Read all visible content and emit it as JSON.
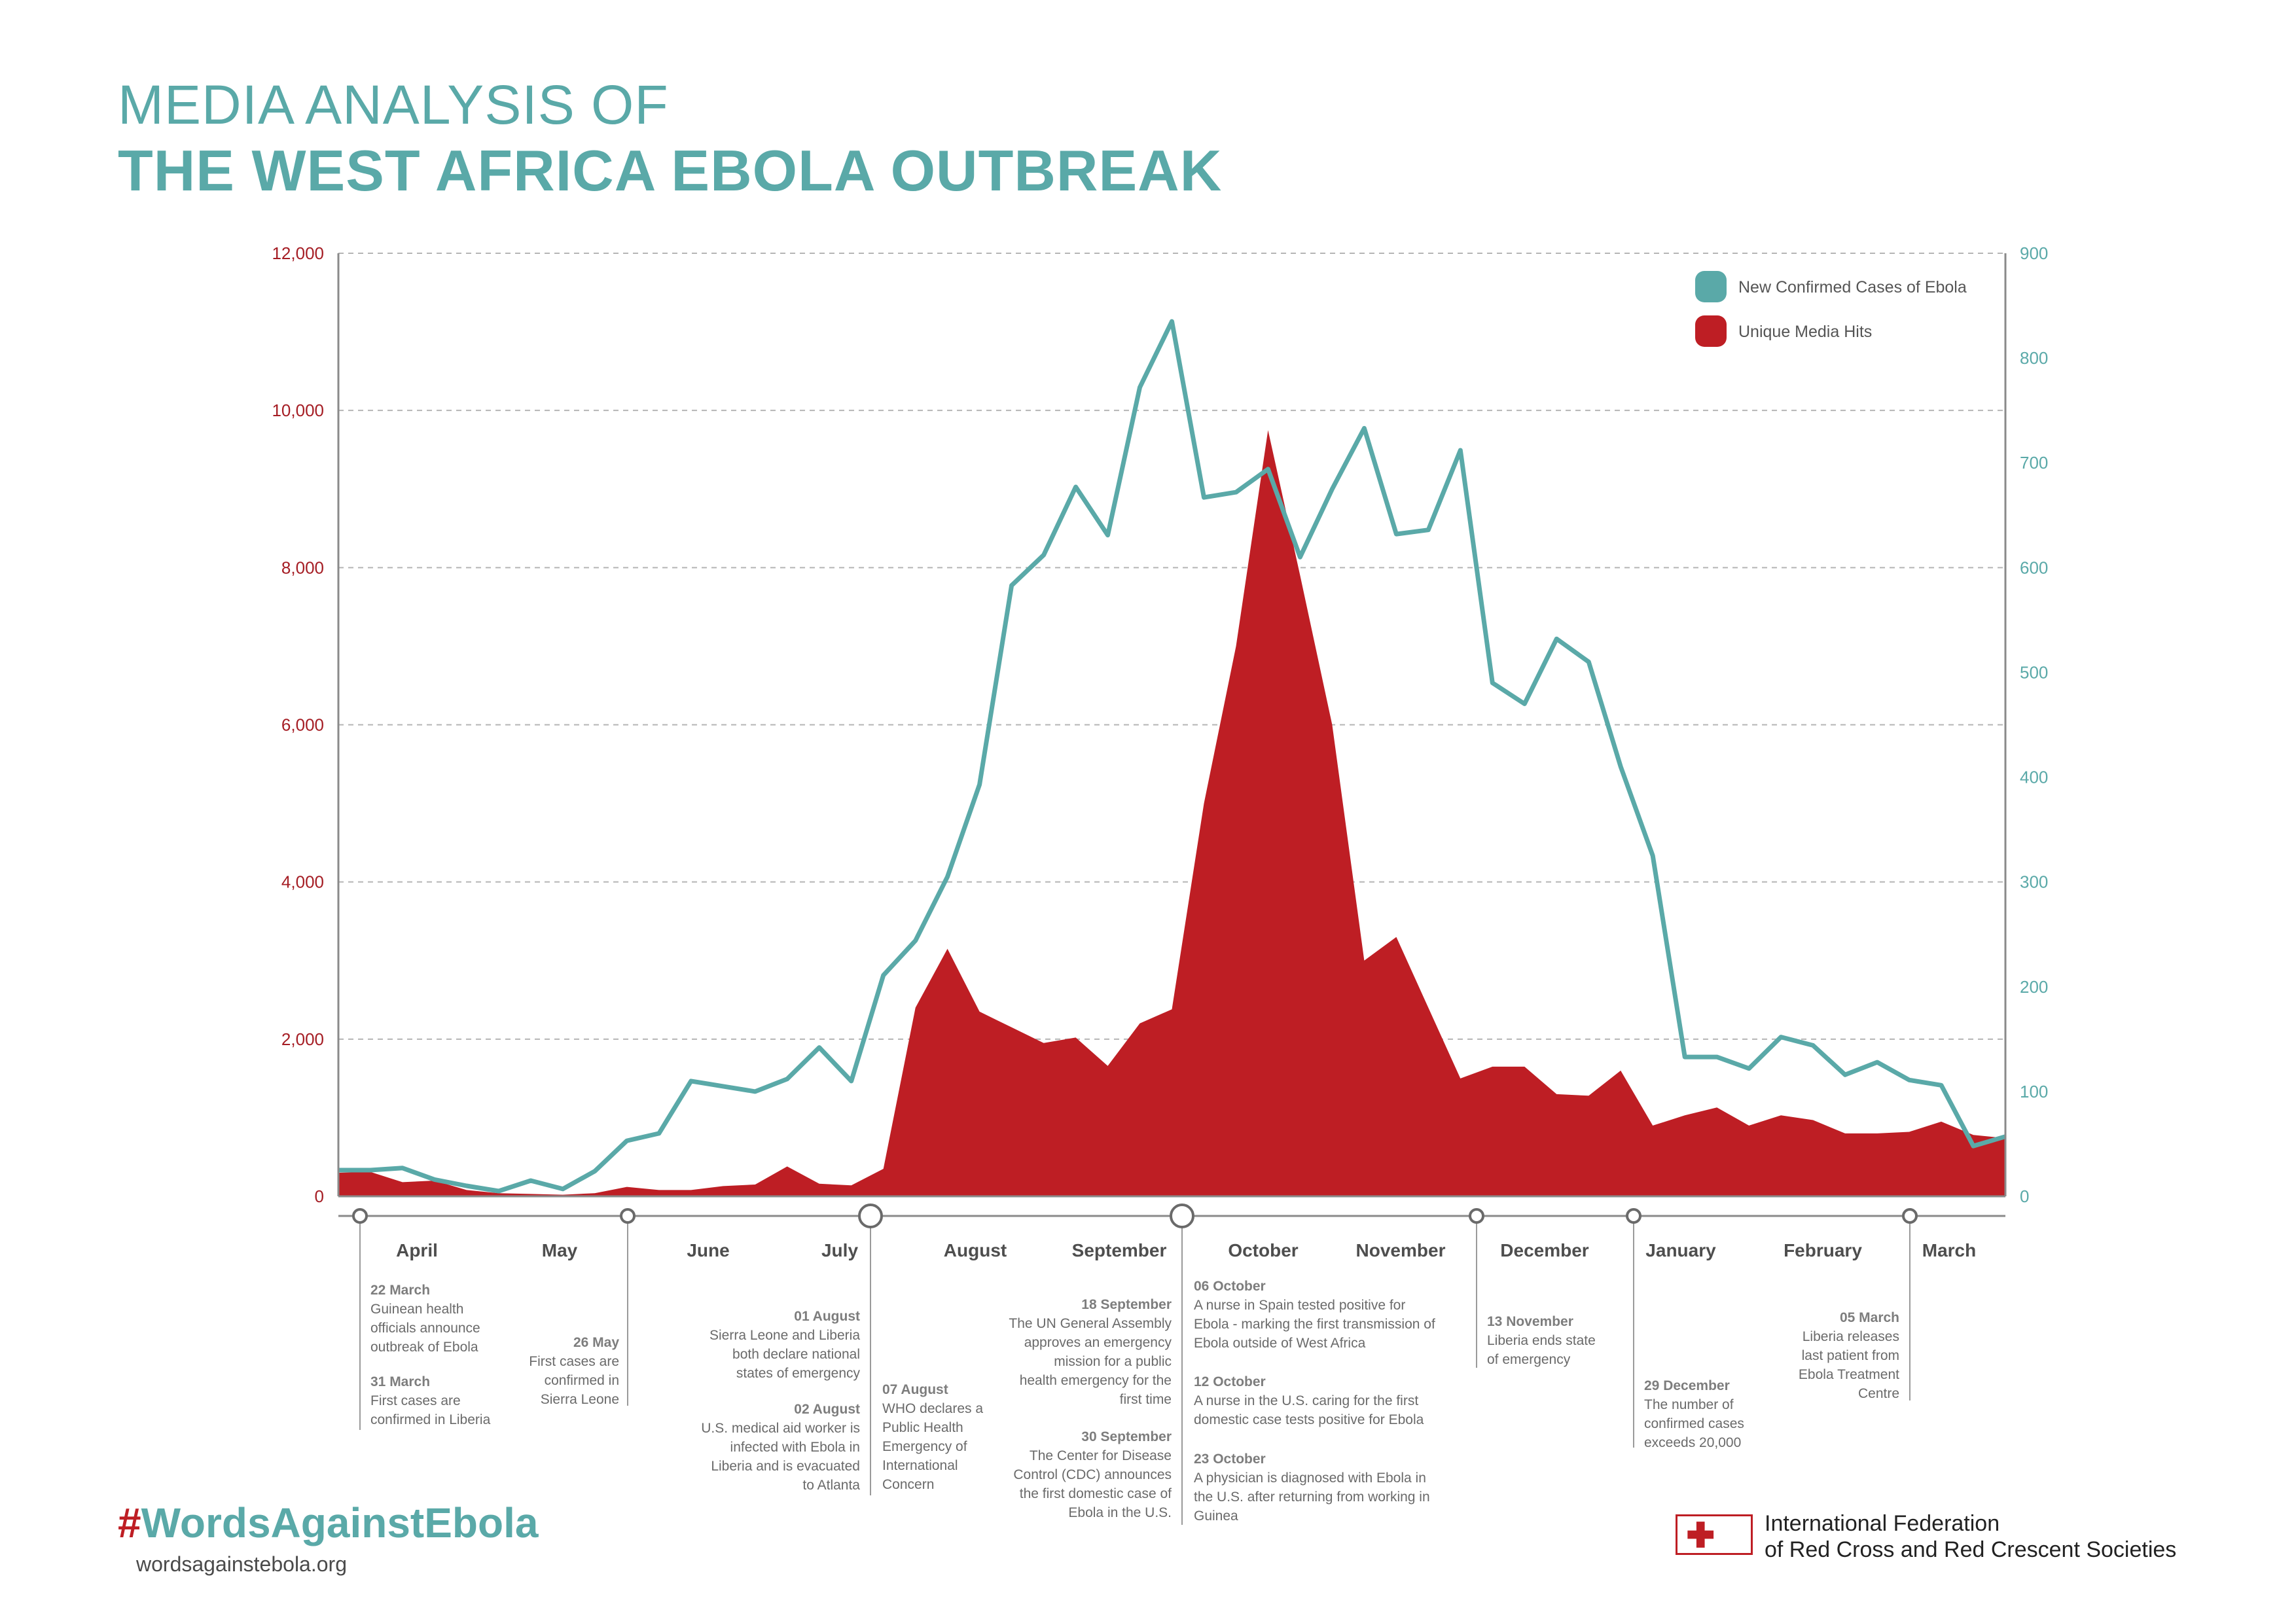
{
  "header": {
    "line1": "MEDIA ANALYSIS OF",
    "line2": "THE WEST AFRICA EBOLA OUTBREAK"
  },
  "footer": {
    "hashtag_symbol": "#",
    "hashtag_text": "WordsAgainstEbola",
    "website": "wordsagainstebola.org",
    "org_line1": "International Federation",
    "org_line2": "of Red Cross and Red Crescent Societies"
  },
  "colors": {
    "teal": "#5aa9a8",
    "red": "#be1e24",
    "axis_left_text": "#a51d24",
    "grid": "#b5b5b5"
  },
  "icons": {
    "logo": "red-cross-red-crescent-icon"
  },
  "chart_data": {
    "type": "area",
    "grid": true,
    "legend_position": "top-right",
    "left_axis": {
      "ylim": [
        0,
        12000
      ],
      "ticks": [
        "0",
        "2,000",
        "4,000",
        "6,000",
        "8,000",
        "10,000",
        "12,000"
      ]
    },
    "right_axis": {
      "ylim": [
        0,
        900
      ],
      "ticks": [
        "0",
        "100",
        "200",
        "300",
        "400",
        "500",
        "600",
        "700",
        "800",
        "900"
      ]
    },
    "months": [
      "April",
      "May",
      "June",
      "July",
      "August",
      "September",
      "October",
      "November",
      "December",
      "January",
      "February",
      "March"
    ],
    "series": [
      {
        "name": "New Confirmed Cases of Ebola",
        "axis": "right",
        "kind": "line",
        "values": [
          25,
          25,
          27,
          16,
          10,
          5,
          15,
          7,
          24,
          53,
          60,
          110,
          105,
          100,
          112,
          142,
          110,
          211,
          244,
          305,
          393,
          583,
          612,
          677,
          631,
          772,
          835,
          667,
          672,
          694,
          610,
          675,
          733,
          632,
          636,
          712,
          490,
          470,
          532,
          510,
          410,
          325,
          133,
          133,
          122,
          152,
          144,
          116,
          128,
          111,
          106,
          48,
          57
        ]
      },
      {
        "name": "Unique Media Hits",
        "axis": "left",
        "kind": "area",
        "values": [
          300,
          310,
          180,
          200,
          80,
          40,
          30,
          20,
          40,
          120,
          80,
          80,
          130,
          150,
          380,
          160,
          140,
          350,
          2400,
          3150,
          2350,
          2150,
          1950,
          2020,
          1660,
          2200,
          2380,
          5000,
          7000,
          9750,
          7900,
          6000,
          3000,
          3300,
          2400,
          1500,
          1650,
          1650,
          1300,
          1280,
          1600,
          900,
          1030,
          1130,
          900,
          1030,
          970,
          800,
          800,
          820,
          950,
          780,
          740
        ]
      }
    ],
    "timeline": [
      {
        "date": "22 March",
        "text": [
          "Guinean health",
          "officials announce",
          "outbreak of Ebola"
        ]
      },
      {
        "date": "31 March",
        "text": [
          "First cases are",
          "confirmed in Liberia"
        ]
      },
      {
        "date": "26 May",
        "text": [
          "First cases are",
          "confirmed in",
          "Sierra Leone"
        ]
      },
      {
        "date": "01 August",
        "text": [
          "Sierra Leone and Liberia",
          "both declare national",
          "states of emergency"
        ]
      },
      {
        "date": "02 August",
        "text": [
          "U.S. medical aid worker is",
          "infected with Ebola in",
          "Liberia and is evacuated",
          "to Atlanta"
        ]
      },
      {
        "date": "07 August",
        "text": [
          "WHO declares a",
          "Public Health",
          "Emergency of",
          "International",
          "Concern"
        ]
      },
      {
        "date": "18 September",
        "text": [
          "The UN General Assembly",
          "approves an emergency",
          "mission for a public",
          "health emergency for the",
          "first time"
        ]
      },
      {
        "date": "30 September",
        "text": [
          "The Center for Disease",
          "Control (CDC) announces",
          "the first domestic case of",
          "Ebola in the U.S."
        ]
      },
      {
        "date": "06 October",
        "text": [
          "A nurse in Spain tested positive for",
          "Ebola - marking the first transmission of",
          "Ebola outside of West Africa"
        ]
      },
      {
        "date": "12 October",
        "text": [
          "A nurse in the U.S. caring for the first",
          "domestic case tests positive for Ebola"
        ]
      },
      {
        "date": "23 October",
        "text": [
          "A physician is diagnosed with Ebola in",
          "the U.S. after returning from working in",
          "Guinea"
        ]
      },
      {
        "date": "13 November",
        "text": [
          "Liberia ends state",
          "of emergency"
        ]
      },
      {
        "date": "29 December",
        "text": [
          "The number of",
          "confirmed cases",
          "exceeds 20,000"
        ]
      },
      {
        "date": "05 March",
        "text": [
          "Liberia releases",
          "last patient from",
          "Ebola Treatment",
          "Centre"
        ]
      }
    ]
  }
}
